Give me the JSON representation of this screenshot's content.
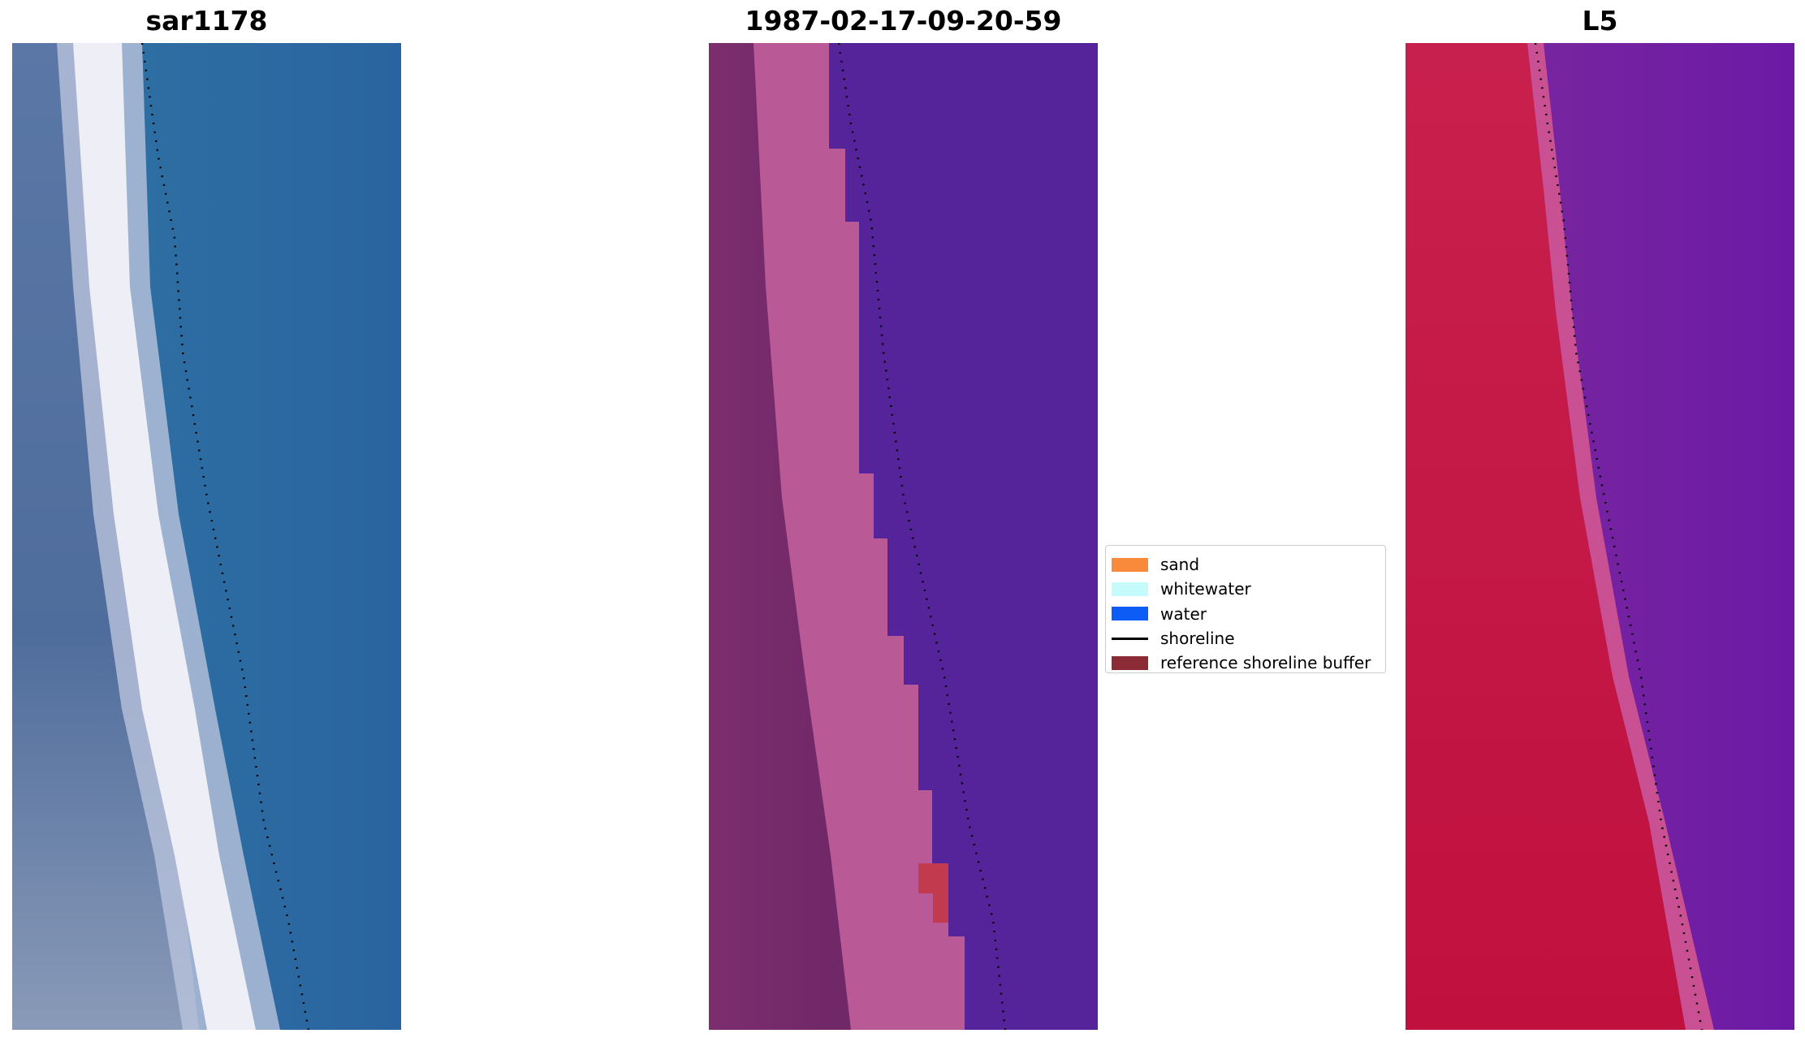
{
  "panels": [
    {
      "title": "sar1178",
      "description": "RGB satellite image: blue ocean, white surf band along coast, shoreline dotted"
    },
    {
      "title": "1987-02-17-09-20-59",
      "description": "classified image with sand/water overlay"
    },
    {
      "title": "L5",
      "description": "false-color image: red land, purple water"
    }
  ],
  "legend": {
    "items": [
      {
        "label": "sand",
        "color": "#f98a3b",
        "kind": "patch"
      },
      {
        "label": "whitewater",
        "color": "#c6fbfb",
        "kind": "patch"
      },
      {
        "label": "water",
        "color": "#0d5cf5",
        "kind": "patch"
      },
      {
        "label": "shoreline",
        "color": "#000000",
        "kind": "line"
      },
      {
        "label": "reference shoreline buffer",
        "color": "#8b2b35",
        "kind": "patch"
      }
    ]
  },
  "colors": {
    "rgb_ocean": "#2c6aa0",
    "rgb_land": "#4c6e9e",
    "rgb_surf": "#f1f0f7",
    "class_land": "#7a2a6c",
    "class_sand_overlay": "#b95a97",
    "class_water": "#55239a",
    "class_buffer_patch": "#c13a4e",
    "false_land": "#c8174a",
    "false_beach": "#c84d8c",
    "false_water": "#7a1fa0"
  }
}
